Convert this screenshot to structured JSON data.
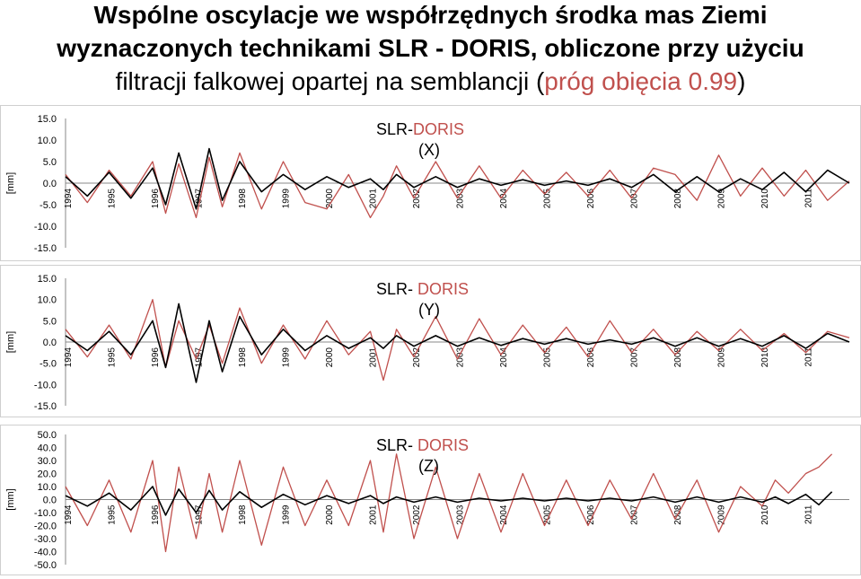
{
  "title": {
    "line1": "Wspólne oscylacje we współrzędnych środka mas Ziemi",
    "line2": "wyznaczonych technikami SLR - DORIS, obliczone przy użyciu",
    "line3_prefix": "filtracji falkowej opartej na semblancji (",
    "line3_accent": "próg obięcia 0.99",
    "line3_suffix": ")"
  },
  "colors": {
    "red": "#c0504d",
    "black": "#000000",
    "grid": "#d9d9d9"
  },
  "chart_data": [
    {
      "type": "line",
      "ylabel": "[mm]",
      "label_part1": "SLR-",
      "label_part2": "DORIS",
      "label_sub": "(X)",
      "ylim": [
        -15,
        15
      ],
      "yticks": [
        "15.0",
        "10.0",
        "5.0",
        "0.0",
        "-5.0",
        "-10.0",
        "-15.0"
      ],
      "x_range": [
        1994,
        2012
      ],
      "xticks": [
        "1994",
        "1995",
        "1996",
        "1997",
        "1998",
        "1999",
        "2000",
        "2001",
        "2002",
        "2003",
        "2004",
        "2005",
        "2006",
        "2007",
        "2008",
        "2009",
        "2010",
        "2011"
      ],
      "series": [
        {
          "color": "#c0504d",
          "x": [
            1994.0,
            1994.5,
            1995.0,
            1995.5,
            1996.0,
            1996.3,
            1996.6,
            1997.0,
            1997.3,
            1997.6,
            1998.0,
            1998.5,
            1999.0,
            1999.5,
            2000.0,
            2000.5,
            2001.0,
            2001.3,
            2001.6,
            2002.0,
            2002.5,
            2003.0,
            2003.5,
            2004.0,
            2004.5,
            2005.0,
            2005.5,
            2006.0,
            2006.5,
            2007.0,
            2007.5,
            2008.0,
            2008.5,
            2009.0,
            2009.5,
            2010.0,
            2010.5,
            2011.0,
            2011.5,
            2012.0
          ],
          "y": [
            2.0,
            -4.5,
            3.0,
            -3.0,
            5.0,
            -7.0,
            4.5,
            -8.0,
            6.0,
            -5.5,
            7.0,
            -6.0,
            5.0,
            -4.5,
            -6.0,
            2.0,
            -8.0,
            -3.0,
            4.0,
            -3.5,
            5.0,
            -3.5,
            4.0,
            -3.5,
            3.0,
            -2.5,
            2.5,
            -3.0,
            3.0,
            -3.5,
            3.5,
            2.0,
            -4.0,
            6.5,
            -3.0,
            3.5,
            -3.0,
            3.0,
            -4.0,
            0.5
          ]
        },
        {
          "color": "#000000",
          "x": [
            1994.0,
            1994.5,
            1995.0,
            1995.5,
            1996.0,
            1996.3,
            1996.6,
            1997.0,
            1997.3,
            1997.6,
            1998.0,
            1998.5,
            1999.0,
            1999.5,
            2000.0,
            2000.5,
            2001.0,
            2001.3,
            2001.6,
            2002.0,
            2002.5,
            2003.0,
            2003.5,
            2004.0,
            2004.5,
            2005.0,
            2005.5,
            2006.0,
            2006.5,
            2007.0,
            2007.5,
            2008.0,
            2008.5,
            2009.0,
            2009.5,
            2010.0,
            2010.5,
            2011.0,
            2011.5,
            2012.0
          ],
          "y": [
            1.5,
            -3.0,
            2.5,
            -3.5,
            3.5,
            -5.0,
            7.0,
            -6.0,
            8.0,
            -4.0,
            5.0,
            -2.0,
            2.0,
            -1.5,
            1.5,
            -1.0,
            1.0,
            -1.5,
            2.0,
            -1.0,
            1.5,
            -1.0,
            1.0,
            -0.5,
            0.8,
            -0.5,
            0.5,
            -0.5,
            1.0,
            -1.0,
            2.0,
            -2.0,
            1.5,
            -2.0,
            1.0,
            -1.5,
            2.5,
            -2.0,
            3.0,
            0.0
          ]
        }
      ]
    },
    {
      "type": "line",
      "ylabel": "[mm]",
      "label_part1": "SLR- ",
      "label_part2": "DORIS",
      "label_sub": "(Y)",
      "ylim": [
        -15,
        15
      ],
      "yticks": [
        "15.0",
        "10.0",
        "5.0",
        "0.0",
        "-5.0",
        "-10.0",
        "-15.0"
      ],
      "x_range": [
        1994,
        2012
      ],
      "xticks": [
        "1994",
        "1995",
        "1996",
        "1997",
        "1998",
        "1999",
        "2000",
        "2001",
        "2002",
        "2003",
        "2004",
        "2005",
        "2006",
        "2007",
        "2008",
        "2009",
        "2010",
        "2011"
      ],
      "series": [
        {
          "color": "#c0504d",
          "x": [
            1994.0,
            1994.5,
            1995.0,
            1995.5,
            1996.0,
            1996.3,
            1996.6,
            1997.0,
            1997.3,
            1997.6,
            1998.0,
            1998.5,
            1999.0,
            1999.5,
            2000.0,
            2000.5,
            2001.0,
            2001.3,
            2001.6,
            2002.0,
            2002.5,
            2003.0,
            2003.5,
            2004.0,
            2004.5,
            2005.0,
            2005.5,
            2006.0,
            2006.5,
            2007.0,
            2007.5,
            2008.0,
            2008.5,
            2009.0,
            2009.5,
            2010.0,
            2010.5,
            2011.0,
            2011.5,
            2012.0
          ],
          "y": [
            3.0,
            -3.5,
            4.0,
            -4.0,
            10.0,
            -6.0,
            5.0,
            -4.0,
            4.0,
            -5.0,
            8.0,
            -5.0,
            4.0,
            -4.0,
            5.0,
            -3.0,
            2.5,
            -9.0,
            3.0,
            -3.5,
            6.0,
            -4.0,
            5.5,
            -3.0,
            4.0,
            -2.5,
            3.5,
            -3.5,
            5.0,
            -2.5,
            3.0,
            -3.0,
            2.5,
            -2.0,
            3.0,
            -2.0,
            2.0,
            -2.5,
            2.5,
            1.0
          ]
        },
        {
          "color": "#000000",
          "x": [
            1994.0,
            1994.5,
            1995.0,
            1995.5,
            1996.0,
            1996.3,
            1996.6,
            1997.0,
            1997.3,
            1997.6,
            1998.0,
            1998.5,
            1999.0,
            1999.5,
            2000.0,
            2000.5,
            2001.0,
            2001.3,
            2001.6,
            2002.0,
            2002.5,
            2003.0,
            2003.5,
            2004.0,
            2004.5,
            2005.0,
            2005.5,
            2006.0,
            2006.5,
            2007.0,
            2007.5,
            2008.0,
            2008.5,
            2009.0,
            2009.5,
            2010.0,
            2010.5,
            2011.0,
            2011.5,
            2012.0
          ],
          "y": [
            1.5,
            -2.0,
            2.5,
            -3.0,
            5.0,
            -6.0,
            9.0,
            -9.5,
            5.0,
            -7.0,
            6.0,
            -3.0,
            3.0,
            -2.0,
            1.5,
            -1.5,
            1.0,
            -1.5,
            1.5,
            -1.0,
            1.5,
            -1.0,
            1.0,
            -0.8,
            0.8,
            -0.5,
            0.8,
            -0.5,
            0.5,
            -0.5,
            1.0,
            -1.0,
            1.0,
            -1.0,
            0.8,
            -1.0,
            1.5,
            -1.5,
            2.0,
            0.0
          ]
        }
      ]
    },
    {
      "type": "line",
      "ylabel": "[mm]",
      "label_part1": "SLR- ",
      "label_part2": "DORIS",
      "label_sub": "(Z)",
      "ylim": [
        -50,
        50
      ],
      "yticks": [
        "50.0",
        "40.0",
        "30.0",
        "20.0",
        "10.0",
        "0.0",
        "-10.0",
        "-20.0",
        "-30.0",
        "-40.0",
        "-50.0"
      ],
      "x_range": [
        1994,
        2012
      ],
      "xticks": [
        "1994",
        "1995",
        "1996",
        "1997",
        "1998",
        "1999",
        "2000",
        "2001",
        "2002",
        "2003",
        "2004",
        "2005",
        "2006",
        "2007",
        "2008",
        "2009",
        "2010",
        "2011"
      ],
      "series": [
        {
          "color": "#c0504d",
          "x": [
            1994.0,
            1994.5,
            1995.0,
            1995.5,
            1996.0,
            1996.3,
            1996.6,
            1997.0,
            1997.3,
            1997.6,
            1998.0,
            1998.5,
            1999.0,
            1999.5,
            2000.0,
            2000.5,
            2001.0,
            2001.3,
            2001.6,
            2002.0,
            2002.5,
            2003.0,
            2003.5,
            2004.0,
            2004.5,
            2005.0,
            2005.5,
            2006.0,
            2006.5,
            2007.0,
            2007.5,
            2008.0,
            2008.5,
            2009.0,
            2009.5,
            2010.0,
            2010.3,
            2010.6,
            2011.0,
            2011.3,
            2011.6
          ],
          "y": [
            10,
            -20,
            15,
            -25,
            30,
            -40,
            25,
            -30,
            20,
            -25,
            30,
            -35,
            25,
            -20,
            15,
            -20,
            30,
            -25,
            35,
            -30,
            25,
            -30,
            20,
            -25,
            20,
            -20,
            15,
            -20,
            15,
            -15,
            20,
            -15,
            15,
            -25,
            10,
            -5,
            15,
            5,
            20,
            25,
            35
          ]
        },
        {
          "color": "#000000",
          "x": [
            1994.0,
            1994.5,
            1995.0,
            1995.5,
            1996.0,
            1996.3,
            1996.6,
            1997.0,
            1997.3,
            1997.6,
            1998.0,
            1998.5,
            1999.0,
            1999.5,
            2000.0,
            2000.5,
            2001.0,
            2001.3,
            2001.6,
            2002.0,
            2002.5,
            2003.0,
            2003.5,
            2004.0,
            2004.5,
            2005.0,
            2005.5,
            2006.0,
            2006.5,
            2007.0,
            2007.5,
            2008.0,
            2008.5,
            2009.0,
            2009.5,
            2010.0,
            2010.3,
            2010.6,
            2011.0,
            2011.3,
            2011.6
          ],
          "y": [
            3,
            -5,
            5,
            -8,
            10,
            -12,
            8,
            -10,
            7,
            -8,
            6,
            -6,
            4,
            -4,
            3,
            -3,
            3,
            -3,
            2,
            -2,
            2,
            -2,
            1,
            -1,
            1,
            -1,
            1,
            -1,
            1,
            -1,
            2,
            -2,
            2,
            -2,
            2,
            -2,
            2,
            -3,
            4,
            -4,
            6
          ]
        }
      ]
    }
  ]
}
